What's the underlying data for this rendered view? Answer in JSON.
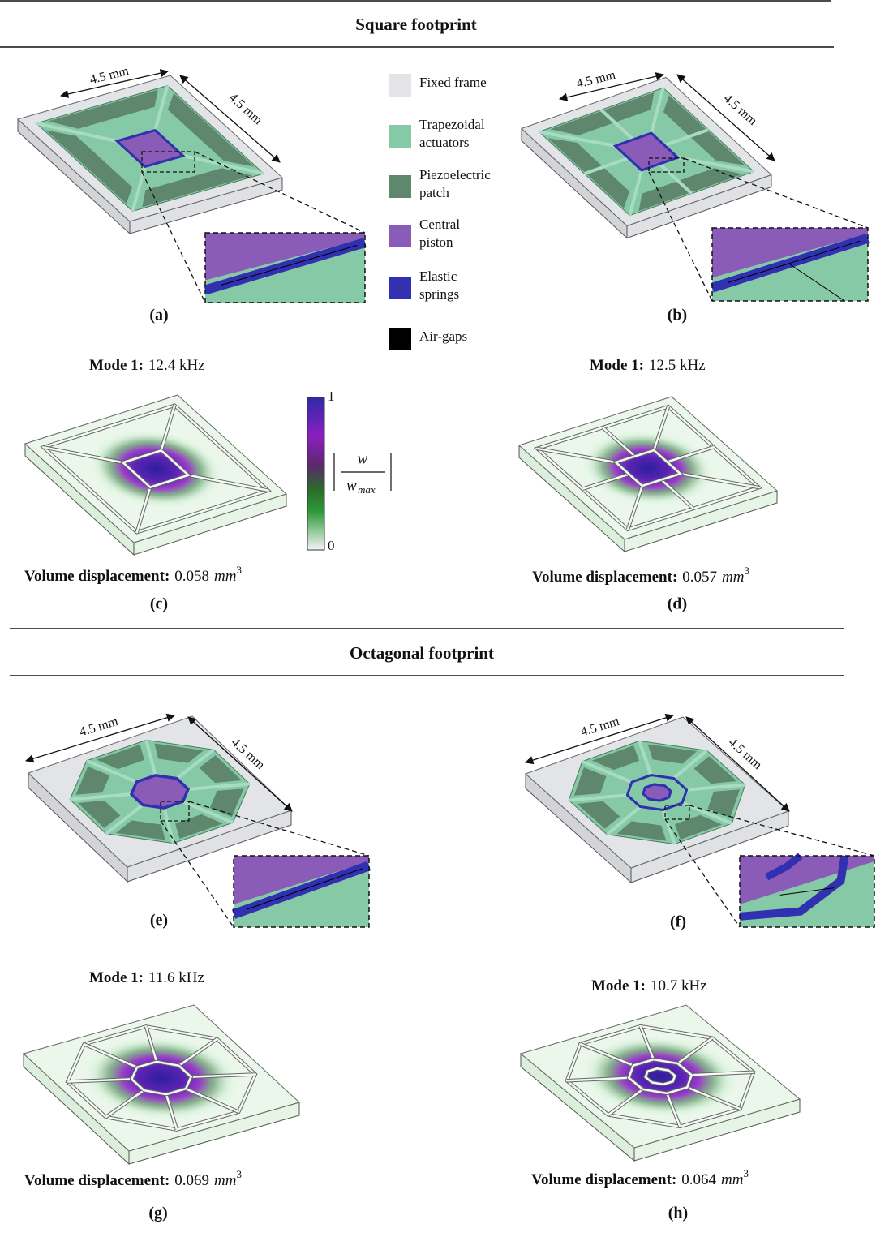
{
  "sections": [
    {
      "title": "Square footprint",
      "panels": [
        {
          "label": "(a)",
          "dimensions": [
            "4.5 mm",
            "4.5 mm"
          ]
        },
        {
          "label": "(b)",
          "dimensions": [
            "4.5 mm",
            "4.5 mm"
          ]
        },
        {
          "label": "(c)",
          "mode": "Mode 1:",
          "frequency": "12.4 kHz",
          "volume_label": "Volume displacement:",
          "volume": "0.058",
          "volume_unit": "mm",
          "volume_exponent": "3"
        },
        {
          "label": "(d)",
          "mode": "Mode 1:",
          "frequency": "12.5 kHz",
          "volume_label": "Volume displacement:",
          "volume": "0.057",
          "volume_unit": "mm",
          "volume_exponent": "3"
        }
      ]
    },
    {
      "title": "Octagonal footprint",
      "panels": [
        {
          "label": "(e)",
          "dimensions": [
            "4.5 mm",
            "4.5 mm"
          ]
        },
        {
          "label": "(f)",
          "dimensions": [
            "4.5 mm",
            "4.5 mm"
          ]
        },
        {
          "label": "(g)",
          "mode": "Mode 1:",
          "frequency": "11.6 kHz",
          "volume_label": "Volume displacement:",
          "volume": "0.069",
          "volume_unit": "mm",
          "volume_exponent": "3"
        },
        {
          "label": "(h)",
          "mode": "Mode 1:",
          "frequency": "10.7 kHz",
          "volume_label": "Volume displacement:",
          "volume": "0.064",
          "volume_unit": "mm",
          "volume_exponent": "3"
        }
      ]
    }
  ],
  "legend": [
    {
      "label": [
        "Fixed frame"
      ],
      "color": "#e2e4e7"
    },
    {
      "label": [
        "Trapezoidal",
        "actuators"
      ],
      "color": "#86c9a6"
    },
    {
      "label": [
        "Piezoelectric",
        "patch"
      ],
      "color": "#5e876d"
    },
    {
      "label": [
        "Central",
        "piston"
      ],
      "color": "#8a5cb8"
    },
    {
      "label": [
        "Elastic",
        "springs"
      ],
      "color": "#3030b0"
    },
    {
      "label": [
        "Air-gaps"
      ],
      "color": "#000000"
    }
  ],
  "colorbar": {
    "max": "1",
    "min": "0",
    "numerator": "w",
    "denominator": "w",
    "denominator_subscript": "max"
  }
}
